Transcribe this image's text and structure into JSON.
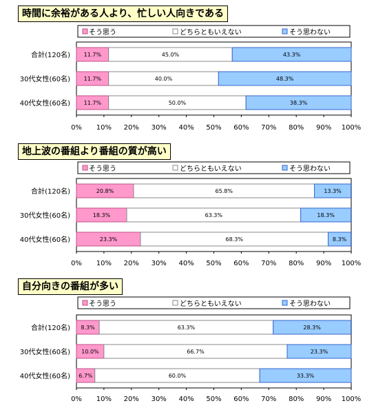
{
  "legend": [
    "そう思う",
    "どちらともいえない",
    "そう思わない"
  ],
  "colors": {
    "agree": "#ff99cc",
    "neutral": "#ffffff",
    "disagree": "#99ccff"
  },
  "chart_data": [
    {
      "type": "bar",
      "stacked": true,
      "orientation": "horizontal",
      "title": "時間に余裕がある人より、忙しい人向きである",
      "categories": [
        "合計(120名)",
        "30代女性(60名)",
        "40代女性(60名)"
      ],
      "series": [
        {
          "name": "そう思う",
          "values": [
            11.7,
            11.7,
            11.7
          ]
        },
        {
          "name": "どちらともいえない",
          "values": [
            45.0,
            40.0,
            50.0
          ]
        },
        {
          "name": "そう思わない",
          "values": [
            43.3,
            48.3,
            38.3
          ]
        }
      ],
      "xlim": [
        0,
        100
      ],
      "xticks": [
        "0%",
        "10%",
        "20%",
        "30%",
        "40%",
        "50%",
        "60%",
        "70%",
        "80%",
        "90%",
        "100%"
      ],
      "legend_position": "top"
    },
    {
      "type": "bar",
      "stacked": true,
      "orientation": "horizontal",
      "title": "地上波の番組より番組の質が高い",
      "categories": [
        "合計(120名)",
        "30代女性(60名)",
        "40代女性(60名)"
      ],
      "series": [
        {
          "name": "そう思う",
          "values": [
            20.8,
            18.3,
            23.3
          ]
        },
        {
          "name": "どちらともいえない",
          "values": [
            65.8,
            63.3,
            68.3
          ]
        },
        {
          "name": "そう思わない",
          "values": [
            13.3,
            18.3,
            8.3
          ]
        }
      ],
      "xlim": [
        0,
        100
      ],
      "xticks": [
        "0%",
        "10%",
        "20%",
        "30%",
        "40%",
        "50%",
        "60%",
        "70%",
        "80%",
        "90%",
        "100%"
      ],
      "legend_position": "top"
    },
    {
      "type": "bar",
      "stacked": true,
      "orientation": "horizontal",
      "title": "自分向きの番組が多い",
      "categories": [
        "合計(120名)",
        "30代女性(60名)",
        "40代女性(60名)"
      ],
      "series": [
        {
          "name": "そう思う",
          "values": [
            8.3,
            10.0,
            6.7
          ]
        },
        {
          "name": "どちらともいえない",
          "values": [
            63.3,
            66.7,
            60.0
          ]
        },
        {
          "name": "そう思わない",
          "values": [
            28.3,
            23.3,
            33.3
          ]
        }
      ],
      "xlim": [
        0,
        100
      ],
      "xticks": [
        "0%",
        "10%",
        "20%",
        "30%",
        "40%",
        "50%",
        "60%",
        "70%",
        "80%",
        "90%",
        "100%"
      ],
      "legend_position": "top"
    }
  ]
}
